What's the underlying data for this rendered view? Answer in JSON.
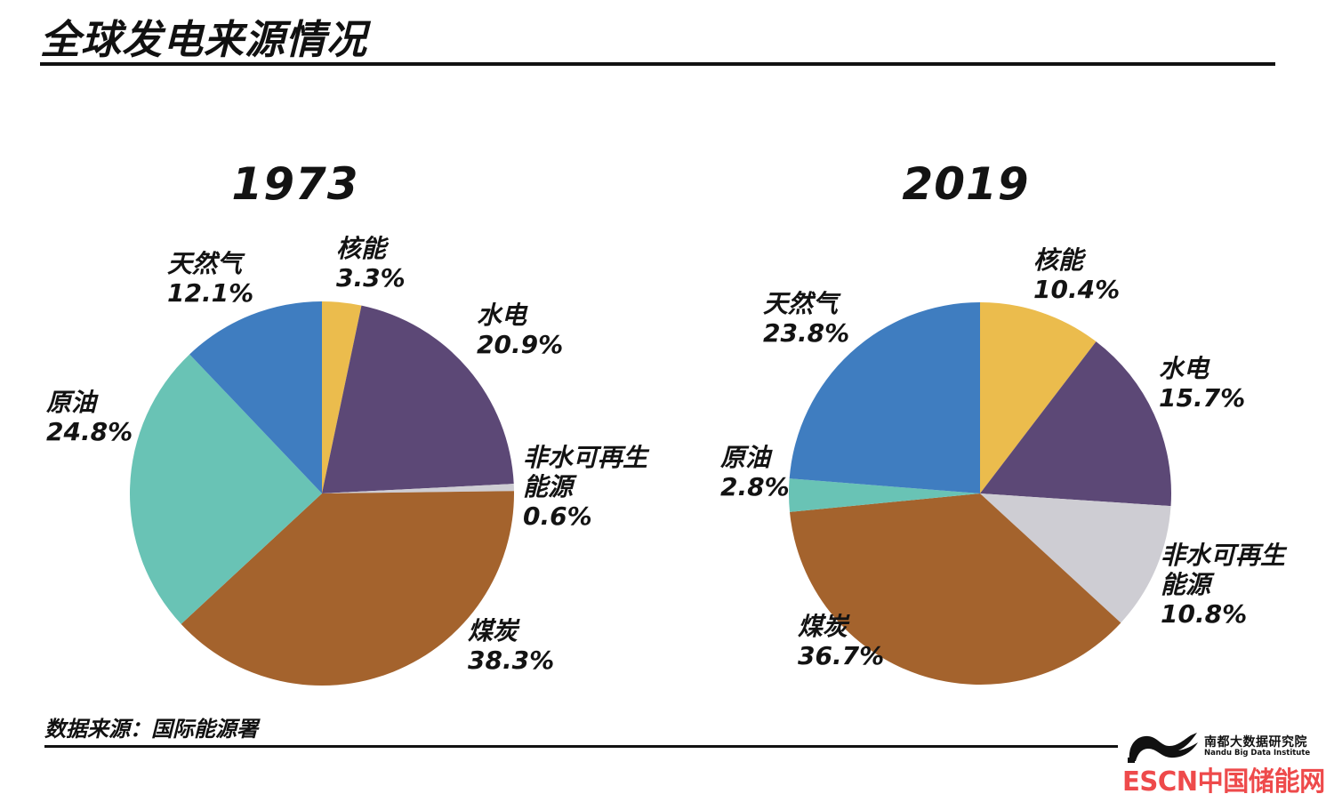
{
  "page": {
    "title": "全球发电来源情况",
    "source_note": "数据来源：国际能源署"
  },
  "colors": {
    "nuclear": "#EBBC4D",
    "hydro": "#5C4876",
    "non_hydro": "#CECDD3",
    "coal": "#A4632D",
    "oil": "#69C3B5",
    "gas": "#3F7DC0"
  },
  "chart_data": [
    {
      "type": "pie",
      "title": "1973",
      "start_angle_deg": 0,
      "direction": "clockwise",
      "slices": [
        {
          "label": "核能",
          "value": 3.3,
          "pct": "3.3%",
          "color_key": "nuclear"
        },
        {
          "label": "水电",
          "value": 20.9,
          "pct": "20.9%",
          "color_key": "hydro"
        },
        {
          "label": "非水可再生能源",
          "value": 0.6,
          "pct": "0.6%",
          "color_key": "non_hydro"
        },
        {
          "label": "煤炭",
          "value": 38.3,
          "pct": "38.3%",
          "color_key": "coal"
        },
        {
          "label": "原油",
          "value": 24.8,
          "pct": "24.8%",
          "color_key": "oil"
        },
        {
          "label": "天然气",
          "value": 12.1,
          "pct": "12.1%",
          "color_key": "gas"
        }
      ]
    },
    {
      "type": "pie",
      "title": "2019",
      "start_angle_deg": 0,
      "direction": "clockwise",
      "slices": [
        {
          "label": "核能",
          "value": 10.4,
          "pct": "10.4%",
          "color_key": "nuclear"
        },
        {
          "label": "水电",
          "value": 15.7,
          "pct": "15.7%",
          "color_key": "hydro"
        },
        {
          "label": "非水可再生能源",
          "value": 10.8,
          "pct": "10.8%",
          "color_key": "non_hydro"
        },
        {
          "label": "煤炭",
          "value": 36.7,
          "pct": "36.7%",
          "color_key": "coal"
        },
        {
          "label": "原油",
          "value": 2.8,
          "pct": "2.8%",
          "color_key": "oil"
        },
        {
          "label": "天然气",
          "value": 23.8,
          "pct": "23.8%",
          "color_key": "gas"
        }
      ]
    }
  ],
  "footer_logo": {
    "institute_cn": "南都大数据研究院",
    "institute_en": "Nandu Big Data Institute",
    "site_name": "ESCN中国储能网",
    "site_color": "#EE4A4B"
  }
}
